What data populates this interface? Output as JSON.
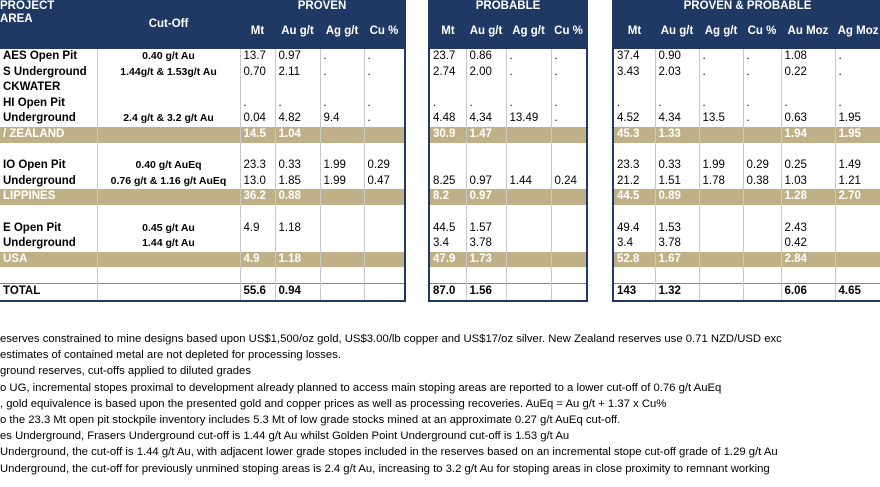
{
  "headers": {
    "project_area": "PROJECT\nAREA",
    "project_line1": "PROJECT",
    "project_line2": "AREA",
    "cutoff": "Cut-Off",
    "proven": "PROVEN",
    "probable": "PROBABLE",
    "proven_probable": "PROVEN & PROBABLE",
    "mt": "Mt",
    "au": "Au g/t",
    "ag": "Ag g/t",
    "cu": "Cu %",
    "au_moz": "Au Moz",
    "ag_moz": "Ag Moz"
  },
  "rows": [
    {
      "type": "data",
      "area": "AES Open Pit",
      "cutoff": "0.40 g/t Au",
      "p": [
        "13.7",
        "0.97",
        ".",
        "."
      ],
      "pb": [
        "23.7",
        "0.86",
        ".",
        "."
      ],
      "pp": [
        "37.4",
        "0.90",
        ".",
        ".",
        "1.08",
        "."
      ]
    },
    {
      "type": "data",
      "area": "S Underground",
      "cutoff": "1.44g/t & 1.53g/t Au",
      "p": [
        "0.70",
        "2.11",
        ".",
        "."
      ],
      "pb": [
        "2.74",
        "2.00",
        ".",
        "."
      ],
      "pp": [
        "3.43",
        "2.03",
        ".",
        ".",
        "0.22",
        "."
      ]
    },
    {
      "type": "data",
      "area": "CKWATER",
      "cutoff": "",
      "p": [
        "",
        "",
        "",
        ""
      ],
      "pb": [
        "",
        "",
        "",
        ""
      ],
      "pp": [
        "",
        "",
        "",
        "",
        "",
        ""
      ]
    },
    {
      "type": "data",
      "area": "HI Open Pit",
      "cutoff": "",
      "p": [
        ".",
        ".",
        ".",
        "."
      ],
      "pb": [
        ".",
        ".",
        ".",
        "."
      ],
      "pp": [
        ".",
        ".",
        ".",
        ".",
        ".",
        "."
      ]
    },
    {
      "type": "data",
      "area": " Underground",
      "cutoff": "2.4 g/t & 3.2 g/t Au",
      "p": [
        "0.04",
        "4.82",
        "9.4",
        "."
      ],
      "pb": [
        "4.48",
        "4.34",
        "13.49",
        "."
      ],
      "pp": [
        "4.52",
        "4.34",
        "13.5",
        ".",
        "0.63",
        "1.95"
      ]
    },
    {
      "type": "sum",
      "area": "/ ZEALAND",
      "cutoff": "",
      "p": [
        "14.5",
        "1.04",
        "",
        ""
      ],
      "pb": [
        "30.9",
        "1.47",
        "",
        ""
      ],
      "pp": [
        "45.3",
        "1.33",
        "",
        "",
        "1.94",
        "1.95"
      ]
    },
    {
      "type": "blank",
      "area": "",
      "cutoff": "",
      "p": [
        "",
        "",
        "",
        ""
      ],
      "pb": [
        "",
        "",
        "",
        ""
      ],
      "pp": [
        "",
        "",
        "",
        "",
        "",
        ""
      ]
    },
    {
      "type": "data",
      "area": "IO Open Pit",
      "cutoff": "0.40 g/t AuEq",
      "p": [
        "23.3",
        "0.33",
        "1.99",
        "0.29"
      ],
      "pb": [
        "",
        "",
        "",
        ""
      ],
      "pp": [
        "23.3",
        "0.33",
        "1.99",
        "0.29",
        "0.25",
        "1.49"
      ]
    },
    {
      "type": "data",
      "area": " Underground",
      "cutoff": "0.76 g/t & 1.16 g/t AuEq",
      "p": [
        "13.0",
        "1.85",
        "1.99",
        "0.47"
      ],
      "pb": [
        "8.25",
        "0.97",
        "1.44",
        "0.24"
      ],
      "pp": [
        "21.2",
        "1.51",
        "1.78",
        "0.38",
        "1.03",
        "1.21"
      ]
    },
    {
      "type": "sum",
      "area": "LIPPINES",
      "cutoff": "",
      "p": [
        "36.2",
        "0.88",
        "",
        ""
      ],
      "pb": [
        "8.2",
        "0.97",
        "",
        ""
      ],
      "pp": [
        "44.5",
        "0.89",
        "",
        "",
        "1.28",
        "2.70"
      ]
    },
    {
      "type": "blank",
      "area": "",
      "cutoff": "",
      "p": [
        "",
        "",
        "",
        ""
      ],
      "pb": [
        "",
        "",
        "",
        ""
      ],
      "pp": [
        "",
        "",
        "",
        "",
        "",
        ""
      ]
    },
    {
      "type": "data",
      "area": "E Open Pit",
      "cutoff": "0.45 g/t Au",
      "p": [
        "4.9",
        "1.18",
        "",
        ""
      ],
      "pb": [
        "44.5",
        "1.57",
        "",
        ""
      ],
      "pp": [
        "49.4",
        "1.53",
        "",
        "",
        "2.43",
        ""
      ]
    },
    {
      "type": "data",
      "area": "Underground",
      "cutoff": "1.44 g/t Au",
      "p": [
        "",
        "",
        "",
        ""
      ],
      "pb": [
        "3.4",
        "3.78",
        "",
        ""
      ],
      "pp": [
        "3.4",
        "3.78",
        "",
        "",
        "0.42",
        ""
      ]
    },
    {
      "type": "sum",
      "area": " USA",
      "cutoff": "",
      "p": [
        "4.9",
        "1.18",
        "",
        ""
      ],
      "pb": [
        "47.9",
        "1.73",
        "",
        ""
      ],
      "pp": [
        "52.8",
        "1.67",
        "",
        "",
        "2.84",
        ""
      ]
    },
    {
      "type": "blank",
      "area": "",
      "cutoff": "",
      "p": [
        "",
        "",
        "",
        ""
      ],
      "pb": [
        "",
        "",
        "",
        ""
      ],
      "pp": [
        "",
        "",
        "",
        "",
        "",
        ""
      ]
    },
    {
      "type": "total",
      "area": "TOTAL",
      "cutoff": "",
      "p": [
        "55.6",
        "0.94",
        "",
        ""
      ],
      "pb": [
        "87.0",
        "1.56",
        "",
        ""
      ],
      "pp": [
        "143",
        "1.32",
        "",
        "",
        "6.06",
        "4.65"
      ]
    }
  ],
  "notes": [
    "eserves constrained to mine designs based upon US$1,500/oz gold, US$3.00/lb copper and US$17/oz silver. New Zealand reserves use 0.71 NZD/USD exc",
    "estimates of contained metal are not depleted for processing losses.",
    "ground reserves, cut-offs applied to diluted grades",
    "o UG, incremental stopes proximal to development already planned to access main stoping areas are reported to a lower cut-off of 0.76 g/t AuEq",
    ", gold equivalence is based upon the presented gold and copper prices as well as processing recoveries. AuEq = Au g/t + 1.37 x Cu%",
    "o the 23.3 Mt open pit stockpile inventory includes 5.3 Mt of low grade stocks mined at an approximate 0.27 g/t AuEq cut-off.",
    "es Underground, Frasers Underground cut-off is 1.44 g/t Au whilst Golden Point Underground cut-off is 1.53 g/t Au",
    " Underground, the cut-off is 1.44 g/t Au, with adjacent lower grade stopes included in the reserves based on an incremental stope cut-off grade of 1.29 g/t Au",
    " Underground, the cut-off for previously unmined stoping areas is 2.4 g/t Au, increasing to 3.2 g/t Au for stoping areas in close proximity to remnant working"
  ],
  "colors": {
    "header": "#1f3864",
    "subtotal": "#bfb087"
  }
}
